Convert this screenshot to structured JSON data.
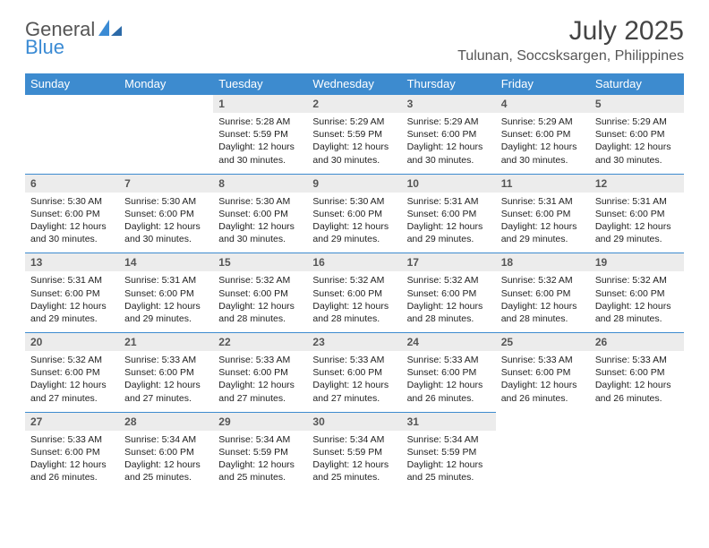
{
  "brand": {
    "part1": "General",
    "part2": "Blue",
    "colors": {
      "general": "#555555",
      "blue": "#3b8bd4"
    }
  },
  "title": "July 2025",
  "location": "Tulunan, Soccsksargen, Philippines",
  "calendar": {
    "day_header_bg": "#3d8bcf",
    "day_header_fg": "#ffffff",
    "daynum_bg": "#ececec",
    "row_border": "#3d8bcf",
    "font_family": "Arial",
    "daynames": [
      "Sunday",
      "Monday",
      "Tuesday",
      "Wednesday",
      "Thursday",
      "Friday",
      "Saturday"
    ],
    "weeks": [
      [
        null,
        null,
        {
          "n": "1",
          "sunrise": "5:28 AM",
          "sunset": "5:59 PM",
          "daylight": "12 hours and 30 minutes."
        },
        {
          "n": "2",
          "sunrise": "5:29 AM",
          "sunset": "5:59 PM",
          "daylight": "12 hours and 30 minutes."
        },
        {
          "n": "3",
          "sunrise": "5:29 AM",
          "sunset": "6:00 PM",
          "daylight": "12 hours and 30 minutes."
        },
        {
          "n": "4",
          "sunrise": "5:29 AM",
          "sunset": "6:00 PM",
          "daylight": "12 hours and 30 minutes."
        },
        {
          "n": "5",
          "sunrise": "5:29 AM",
          "sunset": "6:00 PM",
          "daylight": "12 hours and 30 minutes."
        }
      ],
      [
        {
          "n": "6",
          "sunrise": "5:30 AM",
          "sunset": "6:00 PM",
          "daylight": "12 hours and 30 minutes."
        },
        {
          "n": "7",
          "sunrise": "5:30 AM",
          "sunset": "6:00 PM",
          "daylight": "12 hours and 30 minutes."
        },
        {
          "n": "8",
          "sunrise": "5:30 AM",
          "sunset": "6:00 PM",
          "daylight": "12 hours and 30 minutes."
        },
        {
          "n": "9",
          "sunrise": "5:30 AM",
          "sunset": "6:00 PM",
          "daylight": "12 hours and 29 minutes."
        },
        {
          "n": "10",
          "sunrise": "5:31 AM",
          "sunset": "6:00 PM",
          "daylight": "12 hours and 29 minutes."
        },
        {
          "n": "11",
          "sunrise": "5:31 AM",
          "sunset": "6:00 PM",
          "daylight": "12 hours and 29 minutes."
        },
        {
          "n": "12",
          "sunrise": "5:31 AM",
          "sunset": "6:00 PM",
          "daylight": "12 hours and 29 minutes."
        }
      ],
      [
        {
          "n": "13",
          "sunrise": "5:31 AM",
          "sunset": "6:00 PM",
          "daylight": "12 hours and 29 minutes."
        },
        {
          "n": "14",
          "sunrise": "5:31 AM",
          "sunset": "6:00 PM",
          "daylight": "12 hours and 29 minutes."
        },
        {
          "n": "15",
          "sunrise": "5:32 AM",
          "sunset": "6:00 PM",
          "daylight": "12 hours and 28 minutes."
        },
        {
          "n": "16",
          "sunrise": "5:32 AM",
          "sunset": "6:00 PM",
          "daylight": "12 hours and 28 minutes."
        },
        {
          "n": "17",
          "sunrise": "5:32 AM",
          "sunset": "6:00 PM",
          "daylight": "12 hours and 28 minutes."
        },
        {
          "n": "18",
          "sunrise": "5:32 AM",
          "sunset": "6:00 PM",
          "daylight": "12 hours and 28 minutes."
        },
        {
          "n": "19",
          "sunrise": "5:32 AM",
          "sunset": "6:00 PM",
          "daylight": "12 hours and 28 minutes."
        }
      ],
      [
        {
          "n": "20",
          "sunrise": "5:32 AM",
          "sunset": "6:00 PM",
          "daylight": "12 hours and 27 minutes."
        },
        {
          "n": "21",
          "sunrise": "5:33 AM",
          "sunset": "6:00 PM",
          "daylight": "12 hours and 27 minutes."
        },
        {
          "n": "22",
          "sunrise": "5:33 AM",
          "sunset": "6:00 PM",
          "daylight": "12 hours and 27 minutes."
        },
        {
          "n": "23",
          "sunrise": "5:33 AM",
          "sunset": "6:00 PM",
          "daylight": "12 hours and 27 minutes."
        },
        {
          "n": "24",
          "sunrise": "5:33 AM",
          "sunset": "6:00 PM",
          "daylight": "12 hours and 26 minutes."
        },
        {
          "n": "25",
          "sunrise": "5:33 AM",
          "sunset": "6:00 PM",
          "daylight": "12 hours and 26 minutes."
        },
        {
          "n": "26",
          "sunrise": "5:33 AM",
          "sunset": "6:00 PM",
          "daylight": "12 hours and 26 minutes."
        }
      ],
      [
        {
          "n": "27",
          "sunrise": "5:33 AM",
          "sunset": "6:00 PM",
          "daylight": "12 hours and 26 minutes."
        },
        {
          "n": "28",
          "sunrise": "5:34 AM",
          "sunset": "6:00 PM",
          "daylight": "12 hours and 25 minutes."
        },
        {
          "n": "29",
          "sunrise": "5:34 AM",
          "sunset": "5:59 PM",
          "daylight": "12 hours and 25 minutes."
        },
        {
          "n": "30",
          "sunrise": "5:34 AM",
          "sunset": "5:59 PM",
          "daylight": "12 hours and 25 minutes."
        },
        {
          "n": "31",
          "sunrise": "5:34 AM",
          "sunset": "5:59 PM",
          "daylight": "12 hours and 25 minutes."
        },
        null,
        null
      ]
    ],
    "labels": {
      "sunrise": "Sunrise:",
      "sunset": "Sunset:",
      "daylight": "Daylight:"
    }
  }
}
